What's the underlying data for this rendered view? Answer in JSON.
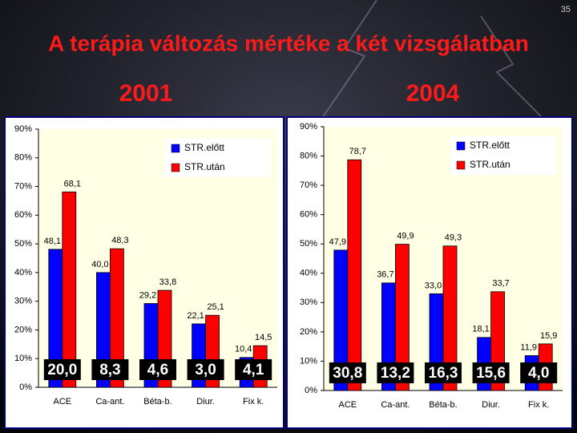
{
  "slide": {
    "number": "35",
    "title": "A terápia változás mértéke a két vizsgálatban"
  },
  "chart_data": [
    {
      "type": "bar",
      "title": "2001",
      "categories": [
        "ACE",
        "Ca-ant.",
        "Béta-b.",
        "Diur.",
        "Fix k."
      ],
      "series": [
        {
          "name": "STR.előtt",
          "color": "#0000ff",
          "values": [
            48.1,
            40.0,
            29.2,
            22.1,
            10.4
          ],
          "value_labels": [
            "48,1",
            "40,0",
            "29,2",
            "22,1",
            "10,4"
          ]
        },
        {
          "name": "STR.után",
          "color": "#ff0000",
          "values": [
            68.1,
            48.3,
            33.8,
            25.1,
            14.5
          ],
          "value_labels": [
            "68,1",
            "48,3",
            "33,8",
            "25,1",
            "14,5"
          ]
        }
      ],
      "difference_labels": [
        "20,0",
        "8,3",
        "4,6",
        "3,0",
        "4,1"
      ],
      "ylim": [
        0,
        90
      ],
      "yticks": [
        {
          "value": 0,
          "label": "0%"
        },
        {
          "value": 10,
          "label": "10%"
        },
        {
          "value": 20,
          "label": "20%"
        },
        {
          "value": 30,
          "label": "30%"
        },
        {
          "value": 40,
          "label": "40%"
        },
        {
          "value": 50,
          "label": "50%"
        },
        {
          "value": 60,
          "label": "60%"
        },
        {
          "value": 70,
          "label": "70%"
        },
        {
          "value": 80,
          "label": "80%"
        },
        {
          "value": 90,
          "label": "90%"
        }
      ],
      "legend": "top-right"
    },
    {
      "type": "bar",
      "title": "2004",
      "categories": [
        "ACE",
        "Ca-ant.",
        "Béta-b.",
        "Diur.",
        "Fix k."
      ],
      "series": [
        {
          "name": "STR.előtt",
          "color": "#0000ff",
          "values": [
            47.9,
            36.7,
            33.0,
            18.1,
            11.9
          ],
          "value_labels": [
            "47,9",
            "36,7",
            "33,0",
            "18,1",
            "11,9"
          ]
        },
        {
          "name": "STR.után",
          "color": "#ff0000",
          "values": [
            78.7,
            49.9,
            49.3,
            33.7,
            15.9
          ],
          "value_labels": [
            "78,7",
            "49,9",
            "49,3",
            "33,7",
            "15,9"
          ]
        }
      ],
      "difference_labels": [
        "30,8",
        "13,2",
        "16,3",
        "15,6",
        "4,0"
      ],
      "ylim": [
        0,
        90
      ],
      "yticks": [
        {
          "value": 0,
          "label": "0%"
        },
        {
          "value": 10,
          "label": "10%"
        },
        {
          "value": 20,
          "label": "20%"
        },
        {
          "value": 30,
          "label": "30%"
        },
        {
          "value": 40,
          "label": "40%"
        },
        {
          "value": 50,
          "label": "50%"
        },
        {
          "value": 60,
          "label": "60%"
        },
        {
          "value": 70,
          "label": "70%"
        },
        {
          "value": 80,
          "label": "80%"
        },
        {
          "value": 90,
          "label": "90%"
        }
      ],
      "legend": "top-right"
    }
  ]
}
